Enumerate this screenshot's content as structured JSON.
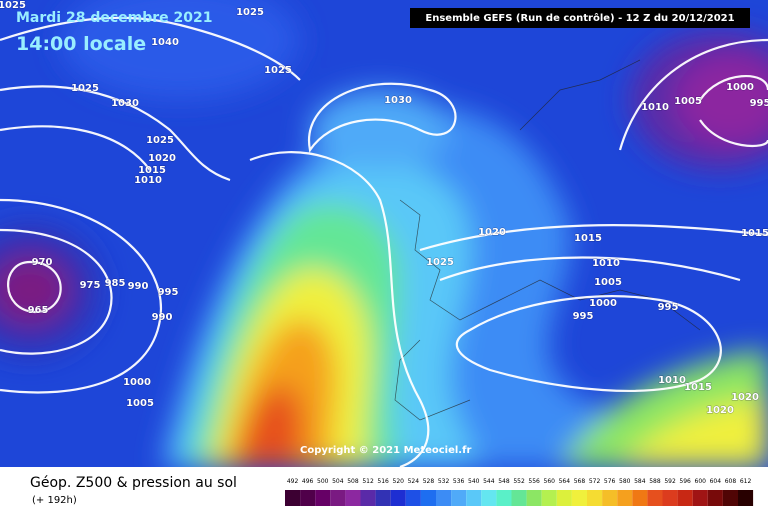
{
  "header": {
    "date": "Mardi 28 decembre 2021",
    "time": "14:00 locale",
    "run": "Ensemble GEFS  (Run de contrôle)  -  12 Z du 20/12/2021",
    "copyright": "Copyright © 2021 Meteociel.fr"
  },
  "footer": {
    "title": "Géop. Z500 & pression au sol",
    "lead": "(+ 192h)"
  },
  "isobar_labels": [
    "1025",
    "1025",
    "1040",
    "1025",
    "1025",
    "1030",
    "1030",
    "1010",
    "1005",
    "1000",
    "995",
    "1025",
    "1020",
    "1015",
    "1010",
    "1020",
    "1015",
    "1015",
    "970",
    "1025",
    "1010",
    "1005",
    "975",
    "985",
    "990",
    "995",
    "965",
    "990",
    "1000",
    "995",
    "995",
    "1000",
    "1005",
    "1010",
    "1015",
    "1020",
    "1020"
  ],
  "legend": {
    "ticks": [
      492,
      496,
      500,
      504,
      508,
      512,
      516,
      520,
      524,
      528,
      532,
      536,
      540,
      544,
      548,
      552,
      556,
      560,
      564,
      568,
      572,
      576,
      580,
      584,
      588,
      592,
      596,
      600,
      604,
      608,
      612
    ],
    "colors": [
      "#3c0032",
      "#50004a",
      "#660066",
      "#7a1a82",
      "#8c28a0",
      "#5a2aa8",
      "#3232b4",
      "#1e2ed2",
      "#1e50e6",
      "#1e6ef0",
      "#3c8cf5",
      "#50aaf8",
      "#5ac8f8",
      "#64e6f0",
      "#5af0c8",
      "#64e696",
      "#8ce664",
      "#b4f050",
      "#dcf03c",
      "#f0f03c",
      "#f5dc32",
      "#f5be28",
      "#f5a01e",
      "#f07814",
      "#e6501e",
      "#dc3c1e",
      "#c82814",
      "#a01414",
      "#780a0a",
      "#500505",
      "#280000"
    ]
  }
}
